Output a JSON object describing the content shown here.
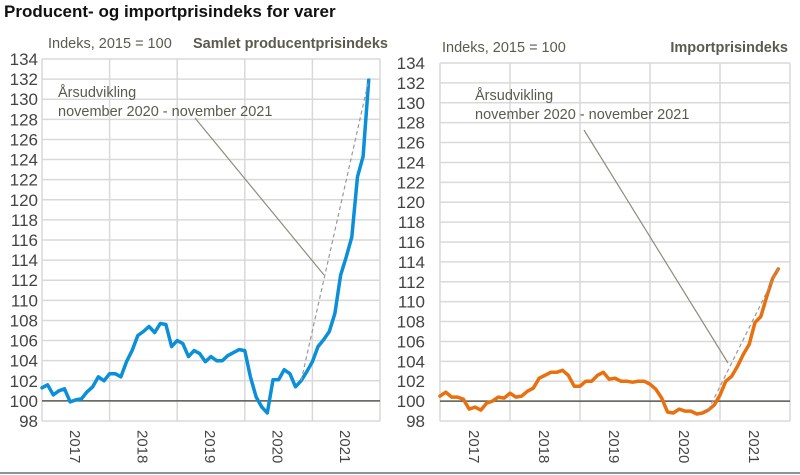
{
  "title": "Producent- og importprisindeks for varer",
  "colors": {
    "producer": "#0a8fd8",
    "import": "#e8700e",
    "grid": "#d9d9d9",
    "baseline": "#5a5a50",
    "text": "#5a5a4e",
    "annotation": "#8c8c80"
  },
  "chart_data": [
    {
      "type": "line",
      "title": "Samlet producentprisindeks",
      "ylabel": "Indeks, 2015 = 100",
      "ylim": [
        98,
        134
      ],
      "yticks": [
        98,
        100,
        102,
        104,
        106,
        108,
        110,
        112,
        114,
        116,
        118,
        120,
        122,
        124,
        126,
        128,
        130,
        132,
        134
      ],
      "xticks": [
        "2017",
        "2018",
        "2019",
        "2020",
        "2021"
      ],
      "x_start": "2017-01",
      "x_end": "2021-11",
      "grid": true,
      "baseline": 100,
      "annotation": {
        "line1": "Årsudvikling",
        "line2": "november 2020 - november 2021",
        "from": "2020-11",
        "to": "2021-11"
      },
      "series": [
        {
          "color": "#0a8fd8",
          "values": [
            101.3,
            101.6,
            100.6,
            101.0,
            101.2,
            99.9,
            100.1,
            100.2,
            100.9,
            101.4,
            102.4,
            102.0,
            102.7,
            102.7,
            102.4,
            103.9,
            105.0,
            106.5,
            106.9,
            107.4,
            106.8,
            107.7,
            107.6,
            105.4,
            106.0,
            105.7,
            104.4,
            105.0,
            104.7,
            103.9,
            104.4,
            104.0,
            104.0,
            104.5,
            104.8,
            105.1,
            105.0,
            102.4,
            100.4,
            99.4,
            98.8,
            102.1,
            102.1,
            103.1,
            102.7,
            101.4,
            102.0,
            102.9,
            103.9,
            105.4,
            106.1,
            106.9,
            108.7,
            112.5,
            114.3,
            116.3,
            122.3,
            124.3,
            131.9
          ]
        }
      ]
    },
    {
      "type": "line",
      "title": "Importprisindeks",
      "ylabel": "Indeks, 2015 = 100",
      "ylim": [
        98,
        134
      ],
      "yticks": [
        98,
        100,
        102,
        104,
        106,
        108,
        110,
        112,
        114,
        116,
        118,
        120,
        122,
        124,
        126,
        128,
        130,
        132,
        134
      ],
      "xticks": [
        "2017",
        "2018",
        "2019",
        "2020",
        "2021"
      ],
      "x_start": "2017-01",
      "x_end": "2021-11",
      "grid": true,
      "baseline": 100,
      "annotation": {
        "line1": "Årsudvikling",
        "line2": "november 2020 - november 2021",
        "from": "2020-11",
        "to": "2021-11"
      },
      "series": [
        {
          "color": "#e8700e",
          "values": [
            100.5,
            100.9,
            100.4,
            100.4,
            100.2,
            99.2,
            99.4,
            99.1,
            99.8,
            100.0,
            100.4,
            100.3,
            100.8,
            100.4,
            100.5,
            101.0,
            101.3,
            102.3,
            102.6,
            102.9,
            102.9,
            103.1,
            102.6,
            101.5,
            101.5,
            102.0,
            102.0,
            102.6,
            102.9,
            102.2,
            102.3,
            102.0,
            102.0,
            101.9,
            102.0,
            102.0,
            101.7,
            101.2,
            100.3,
            98.9,
            98.8,
            99.2,
            99.0,
            99.0,
            98.7,
            98.8,
            99.1,
            99.6,
            100.6,
            102.0,
            102.5,
            103.5,
            104.7,
            105.7,
            107.9,
            108.5,
            110.5,
            112.3,
            113.3
          ]
        }
      ]
    }
  ]
}
